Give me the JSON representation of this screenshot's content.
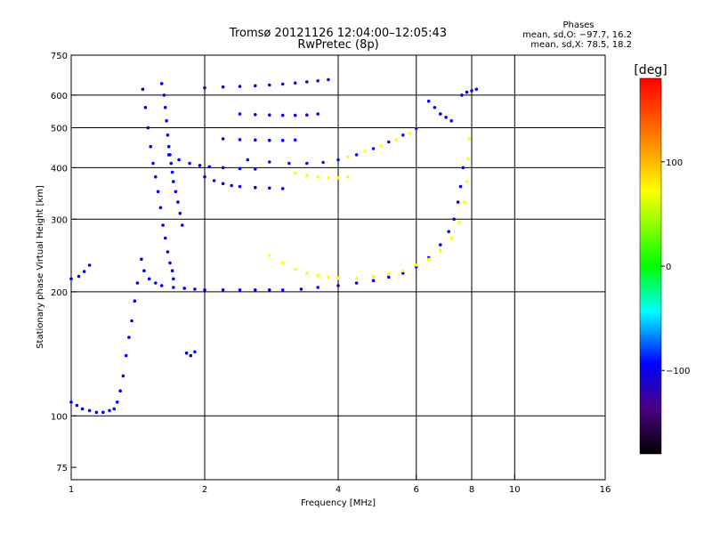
{
  "chart_data": {
    "type": "scatter",
    "title": "Tromsø 20121126 12:04:00–12:05:43",
    "subtitle": "RwPretec (8p)",
    "xlabel": "Frequency [MHz]",
    "ylabel": "Stationary phase Virtual Height [km]",
    "x_scale": "log",
    "y_scale": "log",
    "xlim": [
      1,
      16
    ],
    "ylim": [
      70,
      750
    ],
    "x_ticks": [
      1,
      2,
      4,
      6,
      8,
      10,
      16
    ],
    "x_tick_labels": [
      "1",
      "2",
      "4",
      "6",
      "8",
      "10",
      "16"
    ],
    "y_ticks": [
      75,
      100,
      200,
      300,
      400,
      500,
      600,
      750
    ],
    "y_tick_labels": [
      "75",
      "100",
      "200",
      "300",
      "400",
      "500",
      "600",
      "750"
    ],
    "grid": true,
    "phase_info": {
      "heading": "Phases",
      "line_o": "mean, sd,O: −97.7, 16.2",
      "line_x": "mean, sd,X:  78.5, 18.2"
    },
    "colorbar": {
      "label": "[deg]",
      "range": [
        -180,
        180
      ],
      "ticks": [
        100,
        0,
        -100
      ],
      "tick_labels": [
        "100",
        "0",
        "−100"
      ],
      "colors": [
        "#ff0000",
        "#ff8000",
        "#ffff00",
        "#00ff00",
        "#00ffff",
        "#0000ff",
        "#4b0082",
        "#000000"
      ]
    },
    "series": [
      {
        "values": [
          [
            1.0,
            108
          ],
          [
            1.03,
            106
          ],
          [
            1.06,
            104
          ],
          [
            1.1,
            103
          ],
          [
            1.14,
            102
          ],
          [
            1.18,
            102
          ],
          [
            1.22,
            103
          ],
          [
            1.25,
            104
          ],
          [
            1.27,
            108
          ],
          [
            1.29,
            115
          ],
          [
            1.31,
            125
          ],
          [
            1.33,
            140
          ],
          [
            1.35,
            155
          ],
          [
            1.37,
            170
          ],
          [
            1.39,
            190
          ],
          [
            1.41,
            210
          ]
        ],
        "phase": -100
      },
      {
        "values": [
          [
            1.44,
            240
          ],
          [
            1.46,
            225
          ],
          [
            1.5,
            215
          ],
          [
            1.55,
            210
          ],
          [
            1.6,
            207
          ],
          [
            1.7,
            205
          ],
          [
            1.8,
            204
          ],
          [
            1.9,
            203
          ],
          [
            2.0,
            202
          ],
          [
            2.2,
            202
          ],
          [
            2.4,
            202
          ],
          [
            2.6,
            202
          ],
          [
            2.8,
            202
          ],
          [
            3.0,
            202
          ],
          [
            3.3,
            203
          ],
          [
            3.6,
            205
          ],
          [
            4.0,
            207
          ],
          [
            4.4,
            210
          ],
          [
            4.8,
            213
          ],
          [
            5.2,
            217
          ],
          [
            5.6,
            222
          ],
          [
            6.0,
            230
          ],
          [
            6.4,
            242
          ],
          [
            6.8,
            260
          ],
          [
            7.1,
            280
          ],
          [
            7.3,
            300
          ],
          [
            7.45,
            330
          ],
          [
            7.55,
            360
          ],
          [
            7.65,
            400
          ]
        ],
        "phase": -100
      },
      {
        "values": [
          [
            2.8,
            245
          ],
          [
            3.0,
            235
          ],
          [
            3.2,
            227
          ],
          [
            3.4,
            222
          ],
          [
            3.6,
            219
          ],
          [
            3.8,
            217
          ],
          [
            4.0,
            216
          ],
          [
            4.4,
            216
          ],
          [
            4.8,
            218
          ],
          [
            5.2,
            221
          ],
          [
            5.6,
            225
          ],
          [
            6.0,
            232
          ],
          [
            6.4,
            240
          ],
          [
            6.8,
            252
          ],
          [
            7.2,
            270
          ],
          [
            7.5,
            295
          ],
          [
            7.7,
            330
          ],
          [
            7.8,
            370
          ],
          [
            7.85,
            420
          ],
          [
            7.9,
            470
          ]
        ],
        "phase": 100
      },
      {
        "values": [
          [
            1.45,
            620
          ],
          [
            1.47,
            560
          ],
          [
            1.49,
            500
          ],
          [
            1.51,
            450
          ],
          [
            1.53,
            410
          ],
          [
            1.55,
            380
          ],
          [
            1.57,
            350
          ],
          [
            1.59,
            320
          ],
          [
            1.61,
            290
          ],
          [
            1.63,
            270
          ],
          [
            1.65,
            250
          ],
          [
            1.67,
            235
          ],
          [
            1.69,
            225
          ],
          [
            1.7,
            215
          ]
        ],
        "phase": -100
      },
      {
        "values": [
          [
            1.6,
            640
          ],
          [
            1.62,
            600
          ],
          [
            1.63,
            560
          ],
          [
            1.64,
            520
          ],
          [
            1.65,
            480
          ],
          [
            1.66,
            450
          ],
          [
            1.67,
            430
          ],
          [
            1.68,
            410
          ],
          [
            1.69,
            390
          ],
          [
            1.7,
            370
          ],
          [
            1.72,
            350
          ],
          [
            1.74,
            330
          ],
          [
            1.76,
            310
          ],
          [
            1.78,
            290
          ]
        ],
        "phase": -100
      },
      {
        "values": [
          [
            1.66,
            430
          ],
          [
            1.75,
            418
          ],
          [
            1.85,
            410
          ],
          [
            1.95,
            405
          ],
          [
            2.05,
            402
          ],
          [
            2.2,
            400
          ],
          [
            2.4,
            398
          ],
          [
            2.6,
            397
          ]
        ],
        "phase": -100
      },
      {
        "values": [
          [
            2.0,
            380
          ],
          [
            2.1,
            372
          ],
          [
            2.2,
            366
          ],
          [
            2.3,
            362
          ],
          [
            2.4,
            360
          ],
          [
            2.6,
            358
          ],
          [
            2.8,
            357
          ],
          [
            3.0,
            356
          ]
        ],
        "phase": -110
      },
      {
        "values": [
          [
            2.5,
            418
          ],
          [
            2.8,
            413
          ],
          [
            3.1,
            410
          ],
          [
            3.4,
            410
          ],
          [
            3.7,
            412
          ],
          [
            4.0,
            418
          ],
          [
            4.4,
            430
          ],
          [
            4.8,
            445
          ],
          [
            5.2,
            462
          ],
          [
            5.6,
            480
          ],
          [
            6.0,
            498
          ]
        ],
        "phase": -95
      },
      {
        "values": [
          [
            3.2,
            388
          ],
          [
            3.4,
            383
          ],
          [
            3.6,
            380
          ],
          [
            3.8,
            378
          ],
          [
            4.0,
            378
          ],
          [
            4.2,
            380
          ]
        ],
        "phase": 100
      },
      {
        "values": [
          [
            4.2,
            425
          ],
          [
            4.6,
            438
          ],
          [
            5.0,
            452
          ],
          [
            5.4,
            468
          ],
          [
            5.8,
            485
          ]
        ],
        "phase": 100
      },
      {
        "values": [
          [
            2.0,
            625
          ],
          [
            2.2,
            628
          ],
          [
            2.4,
            630
          ],
          [
            2.6,
            632
          ],
          [
            2.8,
            635
          ],
          [
            3.0,
            638
          ],
          [
            3.2,
            642
          ],
          [
            3.4,
            646
          ],
          [
            3.6,
            650
          ],
          [
            3.8,
            654
          ]
        ],
        "phase": -120
      },
      {
        "values": [
          [
            2.4,
            540
          ],
          [
            2.6,
            538
          ],
          [
            2.8,
            537
          ],
          [
            3.0,
            536
          ],
          [
            3.2,
            536
          ],
          [
            3.4,
            537
          ],
          [
            3.6,
            540
          ]
        ],
        "phase": -110
      },
      {
        "values": [
          [
            2.2,
            470
          ],
          [
            2.4,
            468
          ],
          [
            2.6,
            467
          ],
          [
            2.8,
            466
          ],
          [
            3.0,
            466
          ],
          [
            3.2,
            467
          ]
        ],
        "phase": -100
      },
      {
        "values": [
          [
            6.4,
            580
          ],
          [
            6.6,
            560
          ],
          [
            6.8,
            540
          ],
          [
            7.0,
            530
          ],
          [
            7.2,
            520
          ]
        ],
        "phase": -100
      },
      {
        "values": [
          [
            7.6,
            600
          ],
          [
            7.8,
            610
          ],
          [
            8.0,
            615
          ],
          [
            8.2,
            620
          ]
        ],
        "phase": -100
      },
      {
        "values": [
          [
            1.0,
            215
          ],
          [
            1.04,
            218
          ],
          [
            1.07,
            224
          ],
          [
            1.1,
            232
          ]
        ],
        "phase": -100
      },
      {
        "values": [
          [
            1.82,
            142
          ],
          [
            1.86,
            140
          ],
          [
            1.9,
            143
          ]
        ],
        "phase": -100
      }
    ]
  }
}
